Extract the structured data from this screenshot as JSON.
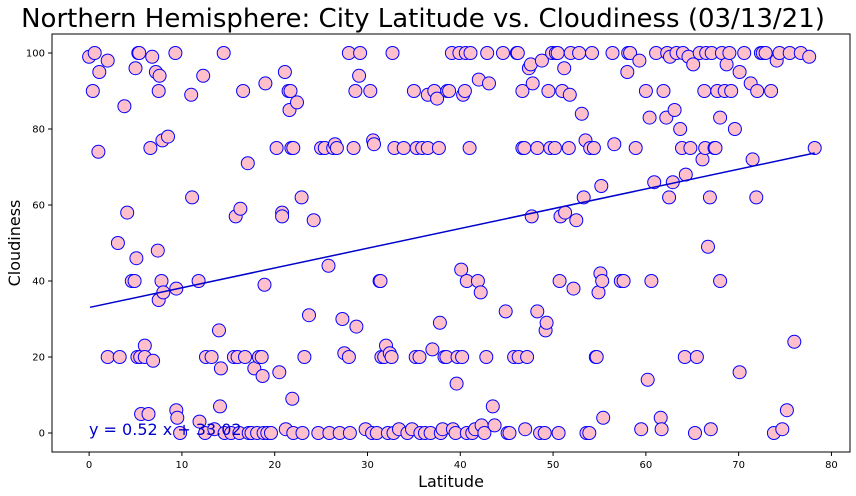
{
  "chart_data": {
    "type": "scatter",
    "title": "Northern Hemisphere: City Latitude vs. Cloudiness (03/13/21)",
    "xlabel": "Latitude",
    "ylabel": "Cloudiness",
    "xlim": [
      -4,
      82
    ],
    "ylim": [
      -5,
      105
    ],
    "xticks": [
      0,
      10,
      20,
      30,
      40,
      50,
      60,
      70,
      80
    ],
    "yticks": [
      0,
      20,
      40,
      60,
      80,
      100
    ],
    "grid": false,
    "marker_fill": "#ffc0cb",
    "marker_edge": "#0000ff",
    "regression": {
      "slope": 0.52,
      "intercept": 33.02,
      "x_range": [
        0.1,
        78.2
      ],
      "color": "#0000cc",
      "equation": "y = 0.52 x + 33.02"
    },
    "points": [
      [
        0,
        99
      ],
      [
        0.6,
        100
      ],
      [
        0.4,
        90
      ],
      [
        1.1,
        95
      ],
      [
        1.0,
        74
      ],
      [
        2.0,
        98
      ],
      [
        2.0,
        20
      ],
      [
        3.3,
        20
      ],
      [
        3.1,
        50
      ],
      [
        3.8,
        86
      ],
      [
        4.1,
        58
      ],
      [
        4.6,
        40
      ],
      [
        4.9,
        40
      ],
      [
        5.0,
        96
      ],
      [
        5.1,
        46
      ],
      [
        5.3,
        100
      ],
      [
        5.4,
        100
      ],
      [
        5.2,
        20
      ],
      [
        5.5,
        20
      ],
      [
        5.6,
        5
      ],
      [
        6.0,
        23
      ],
      [
        6.0,
        20
      ],
      [
        6.4,
        5
      ],
      [
        6.6,
        75
      ],
      [
        6.8,
        99
      ],
      [
        6.9,
        19
      ],
      [
        7.2,
        95
      ],
      [
        7.4,
        48
      ],
      [
        7.5,
        90
      ],
      [
        7.6,
        94
      ],
      [
        7.5,
        35
      ],
      [
        7.8,
        40
      ],
      [
        7.9,
        77
      ],
      [
        8.0,
        37
      ],
      [
        8.5,
        78
      ],
      [
        9.3,
        100
      ],
      [
        9.4,
        38
      ],
      [
        9.4,
        6
      ],
      [
        9.5,
        4
      ],
      [
        9.8,
        0
      ],
      [
        11.0,
        89
      ],
      [
        11.1,
        62
      ],
      [
        11.8,
        40
      ],
      [
        11.9,
        3
      ],
      [
        12.3,
        94
      ],
      [
        12.5,
        0
      ],
      [
        12.6,
        20
      ],
      [
        13.2,
        20
      ],
      [
        13.5,
        1
      ],
      [
        14.0,
        27
      ],
      [
        14.1,
        7
      ],
      [
        14.2,
        17
      ],
      [
        14.5,
        100
      ],
      [
        14.6,
        0
      ],
      [
        15.3,
        0
      ],
      [
        15.6,
        20
      ],
      [
        15.8,
        57
      ],
      [
        16.0,
        20
      ],
      [
        16.2,
        0
      ],
      [
        16.3,
        59
      ],
      [
        16.6,
        90
      ],
      [
        16.8,
        20
      ],
      [
        17.1,
        71
      ],
      [
        17.2,
        0
      ],
      [
        17.5,
        0
      ],
      [
        17.8,
        17
      ],
      [
        18.1,
        0
      ],
      [
        18.3,
        20
      ],
      [
        18.6,
        20
      ],
      [
        18.7,
        15
      ],
      [
        18.8,
        0
      ],
      [
        18.9,
        39
      ],
      [
        19.0,
        92
      ],
      [
        19.2,
        0
      ],
      [
        19.6,
        0
      ],
      [
        20.2,
        75
      ],
      [
        20.5,
        16
      ],
      [
        20.8,
        58
      ],
      [
        20.8,
        57
      ],
      [
        21.1,
        95
      ],
      [
        21.2,
        1
      ],
      [
        21.5,
        90
      ],
      [
        21.6,
        85
      ],
      [
        21.7,
        90
      ],
      [
        21.8,
        75
      ],
      [
        22.0,
        75
      ],
      [
        21.9,
        9
      ],
      [
        22.0,
        0
      ],
      [
        22.4,
        87
      ],
      [
        22.9,
        62
      ],
      [
        23.0,
        0
      ],
      [
        23.2,
        20
      ],
      [
        23.7,
        31
      ],
      [
        24.2,
        56
      ],
      [
        24.7,
        0
      ],
      [
        25.0,
        75
      ],
      [
        25.4,
        75
      ],
      [
        25.8,
        44
      ],
      [
        25.9,
        0
      ],
      [
        26.3,
        75
      ],
      [
        26.5,
        76
      ],
      [
        26.7,
        75
      ],
      [
        27.0,
        0
      ],
      [
        27.3,
        30
      ],
      [
        27.5,
        21
      ],
      [
        28.0,
        20
      ],
      [
        28.0,
        100
      ],
      [
        28.1,
        0
      ],
      [
        28.5,
        75
      ],
      [
        28.7,
        90
      ],
      [
        28.8,
        28
      ],
      [
        29.1,
        94
      ],
      [
        29.2,
        100
      ],
      [
        29.8,
        1
      ],
      [
        30.3,
        90
      ],
      [
        30.5,
        0
      ],
      [
        30.6,
        77
      ],
      [
        30.7,
        76
      ],
      [
        31.0,
        0
      ],
      [
        31.3,
        40
      ],
      [
        31.4,
        40
      ],
      [
        31.5,
        20
      ],
      [
        31.8,
        20
      ],
      [
        32.0,
        23
      ],
      [
        32.2,
        0
      ],
      [
        32.4,
        21
      ],
      [
        32.6,
        20
      ],
      [
        32.7,
        100
      ],
      [
        32.9,
        75
      ],
      [
        32.8,
        0
      ],
      [
        33.4,
        1
      ],
      [
        33.9,
        75
      ],
      [
        34.3,
        0
      ],
      [
        34.8,
        1
      ],
      [
        35.0,
        90
      ],
      [
        35.2,
        20
      ],
      [
        35.3,
        75
      ],
      [
        35.6,
        20
      ],
      [
        35.7,
        0
      ],
      [
        35.9,
        75
      ],
      [
        36.2,
        0
      ],
      [
        36.5,
        75
      ],
      [
        36.5,
        89
      ],
      [
        36.8,
        0
      ],
      [
        37.0,
        22
      ],
      [
        37.2,
        90
      ],
      [
        37.5,
        88
      ],
      [
        37.7,
        75
      ],
      [
        37.8,
        29
      ],
      [
        37.9,
        0
      ],
      [
        38.1,
        1
      ],
      [
        38.3,
        20
      ],
      [
        38.5,
        20
      ],
      [
        38.6,
        90
      ],
      [
        38.8,
        90
      ],
      [
        39.1,
        100
      ],
      [
        39.2,
        1
      ],
      [
        39.5,
        0
      ],
      [
        39.7,
        20
      ],
      [
        39.9,
        100
      ],
      [
        39.6,
        13
      ],
      [
        40.2,
        20
      ],
      [
        40.1,
        43
      ],
      [
        40.3,
        89
      ],
      [
        40.5,
        90
      ],
      [
        40.6,
        100
      ],
      [
        40.7,
        0
      ],
      [
        40.7,
        40
      ],
      [
        41.0,
        75
      ],
      [
        41.1,
        100
      ],
      [
        41.3,
        0
      ],
      [
        41.6,
        1
      ],
      [
        41.9,
        40
      ],
      [
        42.0,
        93
      ],
      [
        42.2,
        37
      ],
      [
        42.3,
        2
      ],
      [
        42.6,
        0
      ],
      [
        42.8,
        20
      ],
      [
        42.9,
        100
      ],
      [
        43.1,
        92
      ],
      [
        43.5,
        7
      ],
      [
        43.7,
        2
      ],
      [
        44.6,
        100
      ],
      [
        44.9,
        32
      ],
      [
        45.1,
        0
      ],
      [
        45.3,
        0
      ],
      [
        45.8,
        20
      ],
      [
        46.1,
        100
      ],
      [
        46.2,
        100
      ],
      [
        46.3,
        20
      ],
      [
        46.7,
        90
      ],
      [
        46.7,
        75
      ],
      [
        46.9,
        75
      ],
      [
        47.0,
        1
      ],
      [
        47.2,
        20
      ],
      [
        47.4,
        96
      ],
      [
        47.6,
        97
      ],
      [
        47.7,
        57
      ],
      [
        47.8,
        92
      ],
      [
        48.3,
        32
      ],
      [
        48.3,
        75
      ],
      [
        48.6,
        0
      ],
      [
        48.8,
        98
      ],
      [
        49.1,
        0
      ],
      [
        49.2,
        27
      ],
      [
        49.3,
        29
      ],
      [
        49.5,
        90
      ],
      [
        49.7,
        75
      ],
      [
        49.9,
        100
      ],
      [
        50.2,
        75
      ],
      [
        50.3,
        100
      ],
      [
        50.5,
        100
      ],
      [
        50.6,
        0
      ],
      [
        50.7,
        40
      ],
      [
        50.8,
        57
      ],
      [
        51.0,
        90
      ],
      [
        51.2,
        96
      ],
      [
        51.3,
        58
      ],
      [
        51.7,
        75
      ],
      [
        51.9,
        100
      ],
      [
        51.8,
        89
      ],
      [
        52.2,
        38
      ],
      [
        52.5,
        56
      ],
      [
        52.8,
        100
      ],
      [
        53.1,
        84
      ],
      [
        53.3,
        62
      ],
      [
        53.5,
        77
      ],
      [
        53.6,
        0
      ],
      [
        53.9,
        0
      ],
      [
        54.0,
        75
      ],
      [
        54.2,
        100
      ],
      [
        54.4,
        75
      ],
      [
        54.6,
        20
      ],
      [
        54.7,
        20
      ],
      [
        54.9,
        37
      ],
      [
        55.1,
        42
      ],
      [
        55.2,
        65
      ],
      [
        55.3,
        40
      ],
      [
        55.4,
        4
      ],
      [
        56.4,
        100
      ],
      [
        56.6,
        76
      ],
      [
        57.3,
        40
      ],
      [
        57.6,
        40
      ],
      [
        58.0,
        95
      ],
      [
        58.1,
        100
      ],
      [
        58.3,
        100
      ],
      [
        58.9,
        75
      ],
      [
        59.3,
        98
      ],
      [
        59.5,
        1
      ],
      [
        60.0,
        90
      ],
      [
        60.2,
        14
      ],
      [
        60.4,
        83
      ],
      [
        60.6,
        40
      ],
      [
        60.9,
        66
      ],
      [
        61.1,
        100
      ],
      [
        61.6,
        4
      ],
      [
        61.7,
        1
      ],
      [
        61.9,
        90
      ],
      [
        62.2,
        83
      ],
      [
        62.3,
        100
      ],
      [
        62.5,
        62
      ],
      [
        62.6,
        99
      ],
      [
        62.9,
        66
      ],
      [
        63.1,
        85
      ],
      [
        63.3,
        100
      ],
      [
        63.7,
        80
      ],
      [
        63.9,
        75
      ],
      [
        64.0,
        100
      ],
      [
        64.2,
        20
      ],
      [
        64.3,
        68
      ],
      [
        64.6,
        99
      ],
      [
        64.8,
        75
      ],
      [
        65.1,
        97
      ],
      [
        65.3,
        0
      ],
      [
        65.5,
        20
      ],
      [
        65.8,
        100
      ],
      [
        66.1,
        72
      ],
      [
        66.3,
        90
      ],
      [
        66.4,
        75
      ],
      [
        66.5,
        100
      ],
      [
        66.7,
        49
      ],
      [
        66.9,
        62
      ],
      [
        67.0,
        1
      ],
      [
        67.1,
        100
      ],
      [
        67.4,
        75
      ],
      [
        67.5,
        75
      ],
      [
        67.7,
        90
      ],
      [
        68.0,
        40
      ],
      [
        68.0,
        83
      ],
      [
        68.2,
        100
      ],
      [
        68.5,
        90
      ],
      [
        68.7,
        97
      ],
      [
        69.0,
        100
      ],
      [
        69.2,
        90
      ],
      [
        69.6,
        80
      ],
      [
        70.1,
        95
      ],
      [
        70.1,
        16
      ],
      [
        70.6,
        100
      ],
      [
        71.3,
        92
      ],
      [
        71.5,
        72
      ],
      [
        71.9,
        62
      ],
      [
        72.0,
        90
      ],
      [
        72.4,
        100
      ],
      [
        72.6,
        100
      ],
      [
        72.9,
        100
      ],
      [
        73.5,
        90
      ],
      [
        73.8,
        0
      ],
      [
        74.1,
        98
      ],
      [
        74.4,
        100
      ],
      [
        74.7,
        1
      ],
      [
        75.2,
        6
      ],
      [
        75.5,
        100
      ],
      [
        76.0,
        24
      ],
      [
        76.7,
        100
      ],
      [
        77.6,
        99
      ],
      [
        78.2,
        75
      ]
    ]
  }
}
